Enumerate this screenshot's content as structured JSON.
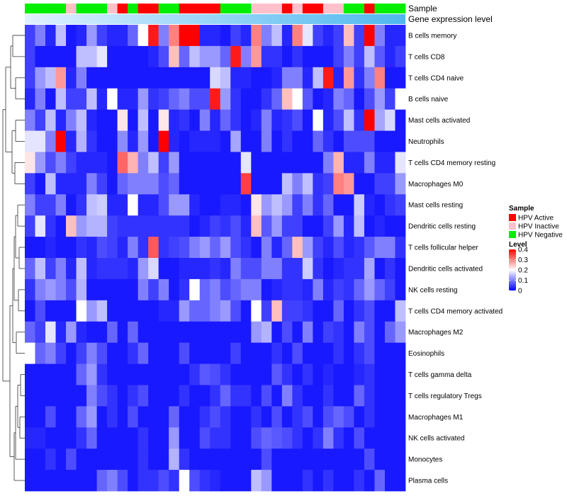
{
  "chart_data": {
    "type": "heatmap",
    "annotation_labels": {
      "sample": "Sample",
      "expression": "Gene expression level"
    },
    "rows": [
      "B cells memory",
      "T cells CD8",
      "T cells CD4 naive",
      "B cells naive",
      "Mast cells activated",
      "Neutrophils",
      "T cells CD4 memory resting",
      "Macrophages M0",
      "Mast cells resting",
      "Dendritic cells resting",
      "T cells follicular helper",
      "Dendritic cells activated",
      "NK cells resting",
      "T cells CD4 memory activated",
      "Macrophages M2",
      "Eosinophils",
      "T cells gamma delta",
      "T cells regulatory  Tregs",
      "Macrophages M1",
      "NK cells activated",
      "Monocytes",
      "Plasma cells"
    ],
    "column_groups": [
      "HPV Negative",
      "HPV Negative",
      "HPV Negative",
      "HPV Negative",
      "HPV Inactive",
      "HPV Negative",
      "HPV Negative",
      "HPV Negative",
      "HPV Inactive",
      "HPV Active",
      "HPV Negative",
      "HPV Active",
      "HPV Active",
      "HPV Negative",
      "HPV Negative",
      "HPV Active",
      "HPV Active",
      "HPV Active",
      "HPV Active",
      "HPV Negative",
      "HPV Negative",
      "HPV Negative",
      "HPV Inactive",
      "HPV Inactive",
      "HPV Inactive",
      "HPV Active",
      "HPV Inactive",
      "HPV Active",
      "HPV Active",
      "HPV Inactive",
      "HPV Inactive",
      "HPV Negative",
      "HPV Negative",
      "HPV Active",
      "HPV Negative",
      "HPV Negative",
      "HPV Negative"
    ],
    "values": [
      [
        0.05,
        0.1,
        0.03,
        0.15,
        0.02,
        0.03,
        0.12,
        0.05,
        0.03,
        0.03,
        0.08,
        0.2,
        0.38,
        0.1,
        0.3,
        0.4,
        0.4,
        0.03,
        0.03,
        0.02,
        0.05,
        0.03,
        0.3,
        0.1,
        0.15,
        0.03,
        0.3,
        0.18,
        0.05,
        0.03,
        0.05,
        0.25,
        0.05,
        0.4,
        0.1,
        0.03,
        0.03
      ],
      [
        0.05,
        0.02,
        0.02,
        0.02,
        0.02,
        0.15,
        0.15,
        0.18,
        0.02,
        0.02,
        0.02,
        0.02,
        0.03,
        0.06,
        0.25,
        0.08,
        0.15,
        0.12,
        0.12,
        0.08,
        0.38,
        0.1,
        0.28,
        0.04,
        0.04,
        0.02,
        0.04,
        0.02,
        0.02,
        0.02,
        0.05,
        0.1,
        0.05,
        0.15,
        0.07,
        0.03,
        0.05
      ],
      [
        0.05,
        0.12,
        0.15,
        0.28,
        0.03,
        0.1,
        0.02,
        0.02,
        0.02,
        0.02,
        0.02,
        0.02,
        0.02,
        0.02,
        0.02,
        0.02,
        0.02,
        0.02,
        0.17,
        0.15,
        0.03,
        0.03,
        0.02,
        0.02,
        0.03,
        0.1,
        0.1,
        0.03,
        0.15,
        0.38,
        0.03,
        0.28,
        0.04,
        0.1,
        0.3,
        0.02,
        0.02
      ],
      [
        0.03,
        0.1,
        0.02,
        0.15,
        0.05,
        0.05,
        0.15,
        0.03,
        0.2,
        0.03,
        0.03,
        0.12,
        0.04,
        0.05,
        0.08,
        0.1,
        0.06,
        0.06,
        0.38,
        0.12,
        0.04,
        0.02,
        0.02,
        0.04,
        0.08,
        0.25,
        0.2,
        0.07,
        0.02,
        0.03,
        0.1,
        0.08,
        0.02,
        0.06,
        0.12,
        0.05,
        0.2
      ],
      [
        0.1,
        0.05,
        0.15,
        0.03,
        0.1,
        0.15,
        0.03,
        0.02,
        0.02,
        0.22,
        0.02,
        0.15,
        0.02,
        0.22,
        0.03,
        0.04,
        0.02,
        0.1,
        0.03,
        0.08,
        0.04,
        0.02,
        0.03,
        0.1,
        0.03,
        0.04,
        0.06,
        0.02,
        0.2,
        0.03,
        0.06,
        0.15,
        0.04,
        0.4,
        0.13,
        0.17,
        0.02
      ],
      [
        0.18,
        0.18,
        0.1,
        0.4,
        0.03,
        0.14,
        0.04,
        0.02,
        0.02,
        0.11,
        0.03,
        0.12,
        0.02,
        0.4,
        0.03,
        0.02,
        0.03,
        0.03,
        0.03,
        0.02,
        0.13,
        0.02,
        0.02,
        0.1,
        0.02,
        0.04,
        0.02,
        0.02,
        0.08,
        0.04,
        0.02,
        0.06,
        0.06,
        0.06,
        0.02,
        0.02,
        0.02
      ],
      [
        0.22,
        0.12,
        0.06,
        0.1,
        0.05,
        0.03,
        0.03,
        0.03,
        0.02,
        0.32,
        0.26,
        0.1,
        0.15,
        0.05,
        0.12,
        0.02,
        0.02,
        0.02,
        0.02,
        0.02,
        0.02,
        0.18,
        0.02,
        0.02,
        0.02,
        0.02,
        0.02,
        0.02,
        0.02,
        0.1,
        0.26,
        0.03,
        0.03,
        0.1,
        0.03,
        0.03,
        0.18
      ],
      [
        0.05,
        0.02,
        0.15,
        0.03,
        0.03,
        0.03,
        0.1,
        0.05,
        0.02,
        0.08,
        0.1,
        0.1,
        0.1,
        0.06,
        0.08,
        0.02,
        0.02,
        0.02,
        0.02,
        0.02,
        0.02,
        0.35,
        0.02,
        0.02,
        0.02,
        0.15,
        0.1,
        0.15,
        0.04,
        0.05,
        0.3,
        0.28,
        0.02,
        0.02,
        0.05,
        0.05,
        0.12
      ],
      [
        0.1,
        0.05,
        0.05,
        0.1,
        0.02,
        0.04,
        0.15,
        0.16,
        0.03,
        0.03,
        0.2,
        0.03,
        0.03,
        0.06,
        0.12,
        0.12,
        0.03,
        0.02,
        0.02,
        0.03,
        0.03,
        0.02,
        0.22,
        0.12,
        0.15,
        0.12,
        0.05,
        0.1,
        0.04,
        0.08,
        0.02,
        0.02,
        0.16,
        0.03,
        0.02,
        0.04,
        0.05
      ],
      [
        0.05,
        0.18,
        0.04,
        0.02,
        0.25,
        0.12,
        0.14,
        0.14,
        0.05,
        0.04,
        0.04,
        0.04,
        0.04,
        0.04,
        0.04,
        0.04,
        0.02,
        0.03,
        0.05,
        0.04,
        0.06,
        0.03,
        0.25,
        0.07,
        0.12,
        0.05,
        0.05,
        0.02,
        0.02,
        0.05,
        0.12,
        0.03,
        0.15,
        0.02,
        0.03,
        0.02,
        0.02
      ],
      [
        0.02,
        0.02,
        0.03,
        0.02,
        0.02,
        0.04,
        0.03,
        0.06,
        0.05,
        0.03,
        0.1,
        0.04,
        0.33,
        0.04,
        0.05,
        0.06,
        0.1,
        0.12,
        0.08,
        0.12,
        0.06,
        0.04,
        0.02,
        0.1,
        0.03,
        0.08,
        0.25,
        0.12,
        0.05,
        0.03,
        0.06,
        0.03,
        0.04,
        0.07,
        0.1,
        0.1,
        0.04
      ],
      [
        0.08,
        0.15,
        0.05,
        0.1,
        0.03,
        0.15,
        0.03,
        0.04,
        0.04,
        0.04,
        0.03,
        0.12,
        0.17,
        0.02,
        0.02,
        0.03,
        0.03,
        0.03,
        0.04,
        0.03,
        0.1,
        0.06,
        0.06,
        0.1,
        0.1,
        0.04,
        0.04,
        0.16,
        0.04,
        0.02,
        0.03,
        0.04,
        0.04,
        0.13,
        0.02,
        0.04,
        0.02
      ],
      [
        0.04,
        0.1,
        0.12,
        0.1,
        0.06,
        0.14,
        0.02,
        0.02,
        0.02,
        0.02,
        0.02,
        0.1,
        0.05,
        0.1,
        0.02,
        0.04,
        0.2,
        0.08,
        0.1,
        0.06,
        0.08,
        0.1,
        0.1,
        0.02,
        0.03,
        0.04,
        0.04,
        0.03,
        0.1,
        0.03,
        0.05,
        0.04,
        0.08,
        0.12,
        0.08,
        0.05,
        0.02
      ],
      [
        0.02,
        0.06,
        0.02,
        0.02,
        0.02,
        0.2,
        0.12,
        0.15,
        0.02,
        0.02,
        0.02,
        0.02,
        0.02,
        0.03,
        0.03,
        0.12,
        0.08,
        0.08,
        0.1,
        0.12,
        0.06,
        0.02,
        0.2,
        0.05,
        0.25,
        0.05,
        0.05,
        0.04,
        0.02,
        0.02,
        0.08,
        0.02,
        0.04,
        0.06,
        0.02,
        0.02,
        0.15
      ],
      [
        0.08,
        0.05,
        0.18,
        0.03,
        0.12,
        0.03,
        0.02,
        0.02,
        0.08,
        0.02,
        0.08,
        0.02,
        0.02,
        0.02,
        0.02,
        0.02,
        0.02,
        0.02,
        0.02,
        0.02,
        0.02,
        0.02,
        0.12,
        0.14,
        0.02,
        0.06,
        0.02,
        0.1,
        0.02,
        0.05,
        0.04,
        0.02,
        0.1,
        0.06,
        0.02,
        0.08,
        0.12
      ],
      [
        0.2,
        0.08,
        0.1,
        0.05,
        0.02,
        0.05,
        0.1,
        0.06,
        0.02,
        0.02,
        0.04,
        0.08,
        0.02,
        0.02,
        0.02,
        0.06,
        0.02,
        0.02,
        0.02,
        0.02,
        0.05,
        0.02,
        0.02,
        0.02,
        0.04,
        0.02,
        0.06,
        0.02,
        0.02,
        0.02,
        0.04,
        0.02,
        0.04,
        0.06,
        0.02,
        0.02,
        0.02
      ],
      [
        0.02,
        0.02,
        0.02,
        0.02,
        0.02,
        0.08,
        0.12,
        0.04,
        0.02,
        0.02,
        0.02,
        0.02,
        0.02,
        0.02,
        0.02,
        0.02,
        0.04,
        0.07,
        0.06,
        0.04,
        0.02,
        0.02,
        0.02,
        0.02,
        0.07,
        0.04,
        0.02,
        0.04,
        0.02,
        0.03,
        0.02,
        0.02,
        0.03,
        0.04,
        0.02,
        0.02,
        0.02
      ],
      [
        0.02,
        0.02,
        0.02,
        0.02,
        0.02,
        0.02,
        0.1,
        0.06,
        0.04,
        0.02,
        0.04,
        0.06,
        0.02,
        0.02,
        0.02,
        0.04,
        0.02,
        0.02,
        0.04,
        0.08,
        0.04,
        0.04,
        0.02,
        0.06,
        0.02,
        0.1,
        0.04,
        0.02,
        0.02,
        0.04,
        0.02,
        0.02,
        0.08,
        0.04,
        0.02,
        0.02,
        0.02
      ],
      [
        0.02,
        0.02,
        0.06,
        0.02,
        0.02,
        0.08,
        0.12,
        0.02,
        0.04,
        0.02,
        0.06,
        0.02,
        0.02,
        0.02,
        0.08,
        0.02,
        0.02,
        0.04,
        0.06,
        0.04,
        0.02,
        0.02,
        0.04,
        0.02,
        0.06,
        0.02,
        0.04,
        0.06,
        0.02,
        0.06,
        0.08,
        0.06,
        0.02,
        0.04,
        0.02,
        0.02,
        0.02
      ],
      [
        0.03,
        0.03,
        0.02,
        0.02,
        0.02,
        0.04,
        0.08,
        0.02,
        0.02,
        0.02,
        0.02,
        0.04,
        0.02,
        0.02,
        0.12,
        0.02,
        0.02,
        0.06,
        0.04,
        0.04,
        0.02,
        0.02,
        0.06,
        0.08,
        0.07,
        0.06,
        0.04,
        0.02,
        0.04,
        0.1,
        0.04,
        0.02,
        0.06,
        0.02,
        0.02,
        0.02,
        0.02
      ],
      [
        0.02,
        0.02,
        0.04,
        0.02,
        0.06,
        0.02,
        0.02,
        0.02,
        0.02,
        0.02,
        0.02,
        0.04,
        0.02,
        0.02,
        0.14,
        0.04,
        0.02,
        0.02,
        0.02,
        0.02,
        0.02,
        0.02,
        0.02,
        0.06,
        0.02,
        0.02,
        0.02,
        0.02,
        0.02,
        0.02,
        0.02,
        0.02,
        0.02,
        0.06,
        0.02,
        0.02,
        0.02
      ],
      [
        0.02,
        0.02,
        0.02,
        0.02,
        0.02,
        0.02,
        0.02,
        0.08,
        0.1,
        0.06,
        0.02,
        0.04,
        0.04,
        0.06,
        0.04,
        0.2,
        0.06,
        0.04,
        0.03,
        0.02,
        0.02,
        0.02,
        0.15,
        0.12,
        0.02,
        0.02,
        0.02,
        0.04,
        0.02,
        0.04,
        0.02,
        0.02,
        0.04,
        0.02,
        0.08,
        0.02,
        0.02
      ]
    ],
    "legend": {
      "sample_title": "Sample",
      "groups": [
        {
          "name": "HPV Active",
          "color": "#ff0000"
        },
        {
          "name": "HPV Inactive",
          "color": "#ffc0cb"
        },
        {
          "name": "HPV Negative",
          "color": "#00ee00"
        }
      ],
      "level_title": "Level",
      "level_ticks": [
        0,
        0.1,
        0.2,
        0.3,
        0.4
      ],
      "level_tick_labels": [
        "0",
        "0.1",
        "0.2",
        "0.3",
        "0.4"
      ],
      "level_range": [
        0,
        0.4
      ]
    },
    "colors": {
      "low": "#0000ff",
      "mid": "#ffffff",
      "high": "#ff0000",
      "expression_bar": [
        "#e0f0ff",
        "#4fb8ef"
      ]
    }
  }
}
